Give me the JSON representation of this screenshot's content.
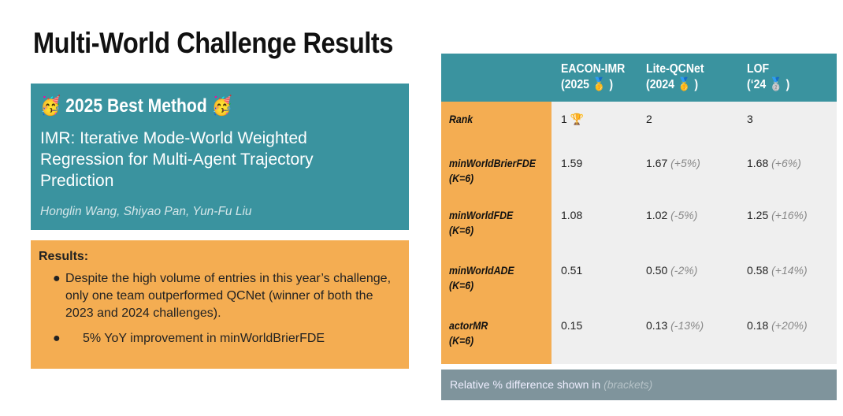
{
  "title": "Multi-World Challenge Results",
  "best": {
    "heading": "🥳 2025 Best Method 🥳",
    "paper": "IMR: Iterative Mode-World Weighted Regression for Multi-Agent Trajectory Prediction",
    "authors": "Honglin Wang, Shiyao Pan, Yun-Fu Liu"
  },
  "results": {
    "heading": "Results:",
    "bullets": [
      "Despite the high volume of entries in this year’s challenge, only one team outperformed QCNet (winner of both the 2023 and 2024 challenges).",
      "5% YoY improvement in minWorldBrierFDE"
    ]
  },
  "table": {
    "columns": [
      {
        "name": "EACON-IMR",
        "sub": "(2025 🥇 )"
      },
      {
        "name": "Lite-QCNet",
        "sub": "(2024 🥇 )"
      },
      {
        "name": "LOF",
        "sub": "(‘24 🥈 )"
      }
    ],
    "rows": [
      {
        "label": "Rank",
        "sub": "",
        "cells": [
          {
            "v": "1 🏆",
            "d": ""
          },
          {
            "v": "2",
            "d": ""
          },
          {
            "v": "3",
            "d": ""
          }
        ]
      },
      {
        "label": "minWorldBrierFDE",
        "sub": "(K=6)",
        "cells": [
          {
            "v": "1.59",
            "d": ""
          },
          {
            "v": "1.67",
            "d": "(+5%)"
          },
          {
            "v": "1.68",
            "d": "(+6%)"
          }
        ]
      },
      {
        "label": "minWorldFDE",
        "sub": "(K=6)",
        "cells": [
          {
            "v": "1.08",
            "d": ""
          },
          {
            "v": "1.02",
            "d": "(-5%)"
          },
          {
            "v": "1.25",
            "d": "(+16%)"
          }
        ]
      },
      {
        "label": "minWorldADE",
        "sub": "(K=6)",
        "cells": [
          {
            "v": "0.51",
            "d": ""
          },
          {
            "v": "0.50",
            "d": "(-2%)"
          },
          {
            "v": "0.58",
            "d": "(+14%)"
          }
        ]
      },
      {
        "label": "actorMR",
        "sub": "(K=6)",
        "cells": [
          {
            "v": "0.15",
            "d": ""
          },
          {
            "v": "0.13",
            "d": "(-13%)"
          },
          {
            "v": "0.18",
            "d": "(+20%)"
          }
        ]
      }
    ]
  },
  "footnote": {
    "text": "Relative % difference shown in",
    "em": "(brackets)"
  }
}
